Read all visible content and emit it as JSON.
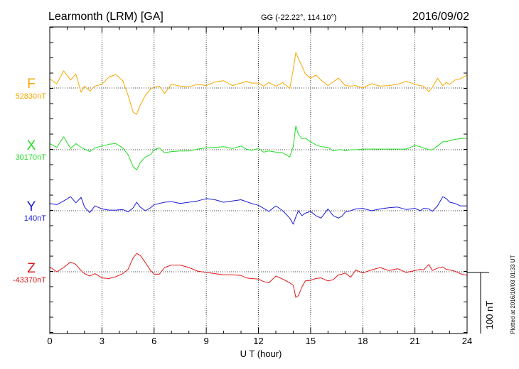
{
  "header": {
    "station": "Learmonth (LRM)  [GA]",
    "coords": "GG (-22.22°, 114.10°)",
    "date": "2016/09/02"
  },
  "footer": {
    "plotted": "Plotted at 2016/10/03 01:33 UT"
  },
  "scale_bar": {
    "label": "100 nT",
    "nT": 100
  },
  "chart_data": {
    "type": "line",
    "title": "Learmonth (LRM)  [GA]",
    "xlabel": "U T (hour)",
    "ylabel": "",
    "xlim": [
      0,
      24
    ],
    "xticks": [
      0,
      3,
      6,
      9,
      12,
      15,
      18,
      21,
      24
    ],
    "xtick_labels": [
      "0",
      "3",
      "6",
      "9",
      "12",
      "15",
      "18",
      "21",
      "24"
    ],
    "y_units": "nT",
    "y_span_nT": 420,
    "grid": true,
    "series": [
      {
        "name": "F",
        "baseline_label": "52830nT",
        "baseline_nT": 52830,
        "color": "#f5a800",
        "x": [
          0,
          0.4,
          0.8,
          1.2,
          1.5,
          1.8,
          2.0,
          2.3,
          2.6,
          3.0,
          3.4,
          3.8,
          4.2,
          4.5,
          4.8,
          5.0,
          5.2,
          5.5,
          5.8,
          6.0,
          6.3,
          6.6,
          7.0,
          7.5,
          8.0,
          8.5,
          9.0,
          9.5,
          10.0,
          10.5,
          11.0,
          11.3,
          11.6,
          12.0,
          12.3,
          12.6,
          13.0,
          13.4,
          13.8,
          14.0,
          14.15,
          14.3,
          14.5,
          14.7,
          15.0,
          15.3,
          15.6,
          16.0,
          16.3,
          16.6,
          16.8,
          17.0,
          17.3,
          17.6,
          18.0,
          18.5,
          19.0,
          19.5,
          20.0,
          20.5,
          21.0,
          21.3,
          21.5,
          21.8,
          22.0,
          22.3,
          22.6,
          22.8,
          23.0,
          23.3,
          23.6,
          24.0
        ],
        "values": [
          15,
          7,
          28,
          13,
          23,
          -7,
          3,
          -5,
          3,
          6,
          18,
          22,
          12,
          -12,
          -40,
          -43,
          -28,
          -12,
          -2,
          1,
          3,
          -9,
          6,
          3,
          2,
          6,
          4,
          10,
          12,
          4,
          8,
          11,
          8,
          8,
          3,
          9,
          3,
          9,
          -1,
          30,
          58,
          48,
          36,
          23,
          16,
          21,
          13,
          4,
          10,
          16,
          10,
          4,
          3,
          4,
          0,
          7,
          3,
          4,
          6,
          11,
          6,
          4,
          3,
          -6,
          1,
          16,
          4,
          9,
          6,
          13,
          15,
          21
        ]
      },
      {
        "name": "X",
        "baseline_label": "30170nT",
        "baseline_nT": 30170,
        "color": "#22dd22",
        "x": [
          0,
          0.4,
          0.8,
          1.2,
          1.5,
          1.8,
          2.0,
          2.3,
          2.6,
          3.0,
          3.4,
          3.8,
          4.2,
          4.5,
          4.8,
          5.0,
          5.2,
          5.5,
          5.8,
          6.0,
          6.3,
          6.6,
          7.0,
          7.5,
          8.0,
          8.5,
          9.0,
          9.5,
          10.0,
          10.5,
          11.0,
          11.3,
          11.6,
          12.0,
          12.3,
          12.6,
          13.0,
          13.4,
          13.8,
          14.0,
          14.15,
          14.3,
          14.5,
          14.7,
          15.0,
          15.3,
          15.6,
          16.0,
          16.3,
          16.6,
          16.8,
          17.0,
          17.3,
          17.6,
          18.0,
          18.5,
          19.0,
          19.5,
          20.0,
          20.5,
          21.0,
          21.3,
          21.5,
          21.8,
          22.0,
          22.3,
          22.6,
          22.8,
          23.0,
          23.3,
          23.6,
          24.0
        ],
        "values": [
          10,
          4,
          21,
          2,
          10,
          4,
          1,
          -3,
          3,
          6,
          9,
          10,
          3,
          -8,
          -28,
          -33,
          -21,
          -12,
          -8,
          0,
          3,
          -5,
          -3,
          -2,
          -2,
          1,
          3,
          4,
          5,
          2,
          6,
          1,
          -1,
          2,
          -4,
          -2,
          -4,
          -5,
          -12,
          5,
          39,
          25,
          18,
          19,
          13,
          8,
          5,
          4,
          -2,
          0,
          0,
          -2,
          0,
          0,
          1,
          1,
          1,
          1,
          1,
          1,
          7,
          5,
          3,
          0,
          0,
          6,
          13,
          13,
          15,
          17,
          18,
          19
        ]
      },
      {
        "name": "Y",
        "baseline_label": "140nT",
        "baseline_nT": 140,
        "color": "#1a1adc",
        "x": [
          0,
          0.4,
          0.8,
          1.2,
          1.5,
          1.8,
          2.0,
          2.3,
          2.6,
          3.0,
          3.4,
          3.8,
          4.2,
          4.5,
          4.8,
          5.0,
          5.2,
          5.5,
          5.8,
          6.0,
          6.3,
          6.6,
          7.0,
          7.5,
          8.0,
          8.5,
          9.0,
          9.5,
          10.0,
          10.5,
          11.0,
          11.3,
          11.6,
          12.0,
          12.3,
          12.6,
          13.0,
          13.4,
          13.8,
          14.0,
          14.15,
          14.3,
          14.5,
          14.7,
          15.0,
          15.3,
          15.6,
          16.0,
          16.3,
          16.6,
          16.8,
          17.0,
          17.3,
          17.6,
          18.0,
          18.5,
          19.0,
          19.5,
          20.0,
          20.5,
          21.0,
          21.3,
          21.5,
          21.8,
          22.0,
          22.3,
          22.6,
          22.8,
          23.0,
          23.3,
          23.6,
          24.0
        ],
        "values": [
          12,
          10,
          16,
          23,
          13,
          22,
          6,
          -3,
          8,
          3,
          1,
          1,
          2,
          -2,
          5,
          14,
          6,
          0,
          5,
          10,
          12,
          14,
          15,
          12,
          14,
          16,
          20,
          18,
          14,
          16,
          18,
          15,
          12,
          9,
          4,
          -1,
          8,
          0,
          -12,
          -22,
          -10,
          0,
          -8,
          -4,
          -1,
          -8,
          -12,
          3,
          -8,
          -12,
          -9,
          -2,
          0,
          3,
          4,
          0,
          3,
          5,
          6,
          2,
          4,
          0,
          4,
          3,
          -1,
          8,
          23,
          20,
          14,
          12,
          8,
          8
        ]
      },
      {
        "name": "Z",
        "baseline_label": "-43370nT",
        "baseline_nT": -43370,
        "color": "#e01818",
        "x": [
          0,
          0.4,
          0.8,
          1.2,
          1.5,
          1.8,
          2.0,
          2.3,
          2.6,
          3.0,
          3.4,
          3.8,
          4.2,
          4.5,
          4.8,
          5.0,
          5.2,
          5.5,
          5.8,
          6.0,
          6.3,
          6.6,
          7.0,
          7.5,
          8.0,
          8.5,
          9.0,
          9.5,
          10.0,
          10.5,
          11.0,
          11.3,
          11.6,
          12.0,
          12.3,
          12.6,
          13.0,
          13.4,
          13.8,
          14.0,
          14.15,
          14.3,
          14.5,
          14.7,
          15.0,
          15.3,
          15.6,
          16.0,
          16.3,
          16.6,
          16.8,
          17.0,
          17.3,
          17.6,
          18.0,
          18.5,
          19.0,
          19.5,
          20.0,
          20.5,
          21.0,
          21.3,
          21.5,
          21.8,
          22.0,
          22.3,
          22.6,
          22.8,
          23.0,
          23.3,
          23.6,
          24.0
        ],
        "values": [
          8,
          0,
          7,
          16,
          12,
          2,
          -3,
          -7,
          -3,
          -10,
          -11,
          -8,
          -3,
          4,
          23,
          30,
          27,
          15,
          2,
          -4,
          -4,
          7,
          11,
          11,
          7,
          1,
          -1,
          -3,
          -5,
          -5,
          -6,
          -10,
          -11,
          -12,
          -16,
          -18,
          -7,
          -12,
          -18,
          -22,
          -42,
          -39,
          -25,
          -15,
          -14,
          -11,
          -10,
          -15,
          -13,
          -5,
          -4,
          -2,
          -9,
          3,
          -2,
          3,
          7,
          2,
          5,
          -1,
          2,
          4,
          3,
          12,
          2,
          6,
          8,
          4,
          3,
          1,
          -3,
          -6
        ]
      }
    ]
  }
}
